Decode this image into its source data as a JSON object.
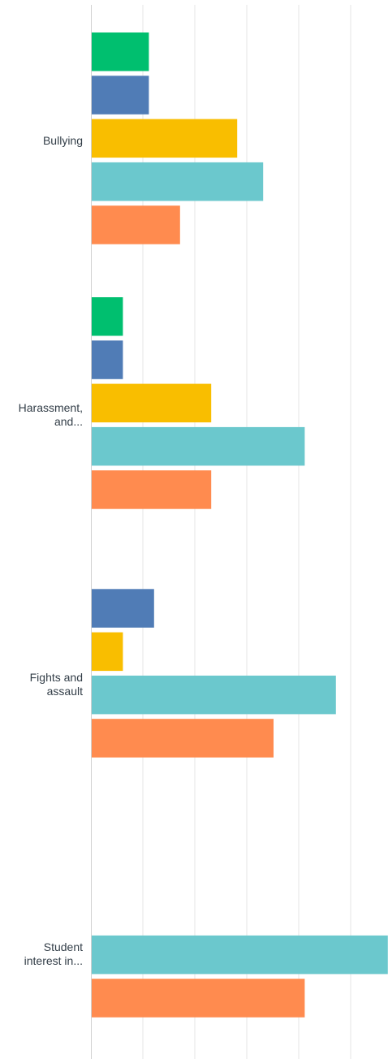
{
  "chart_data": {
    "type": "bar",
    "orientation": "horizontal",
    "categories": [
      [
        "Bullying"
      ],
      [
        "Harassment,",
        "and..."
      ],
      [
        "Fights and",
        "assault"
      ],
      [
        "Student",
        "interest in..."
      ]
    ],
    "series": [
      {
        "color": "#00bf6f",
        "values": [
          11,
          6,
          0,
          0
        ]
      },
      {
        "color": "#507cb6",
        "values": [
          11,
          6,
          12,
          0
        ]
      },
      {
        "color": "#f9be00",
        "values": [
          28,
          23,
          6,
          0
        ]
      },
      {
        "color": "#6bc8cd",
        "values": [
          33,
          41,
          47,
          57
        ]
      },
      {
        "color": "#ff8b4f",
        "values": [
          17,
          23,
          35,
          41
        ]
      }
    ],
    "xlim": [
      0,
      57
    ],
    "grid": true,
    "gridlines": [
      0,
      10,
      20,
      30,
      40,
      50
    ]
  }
}
